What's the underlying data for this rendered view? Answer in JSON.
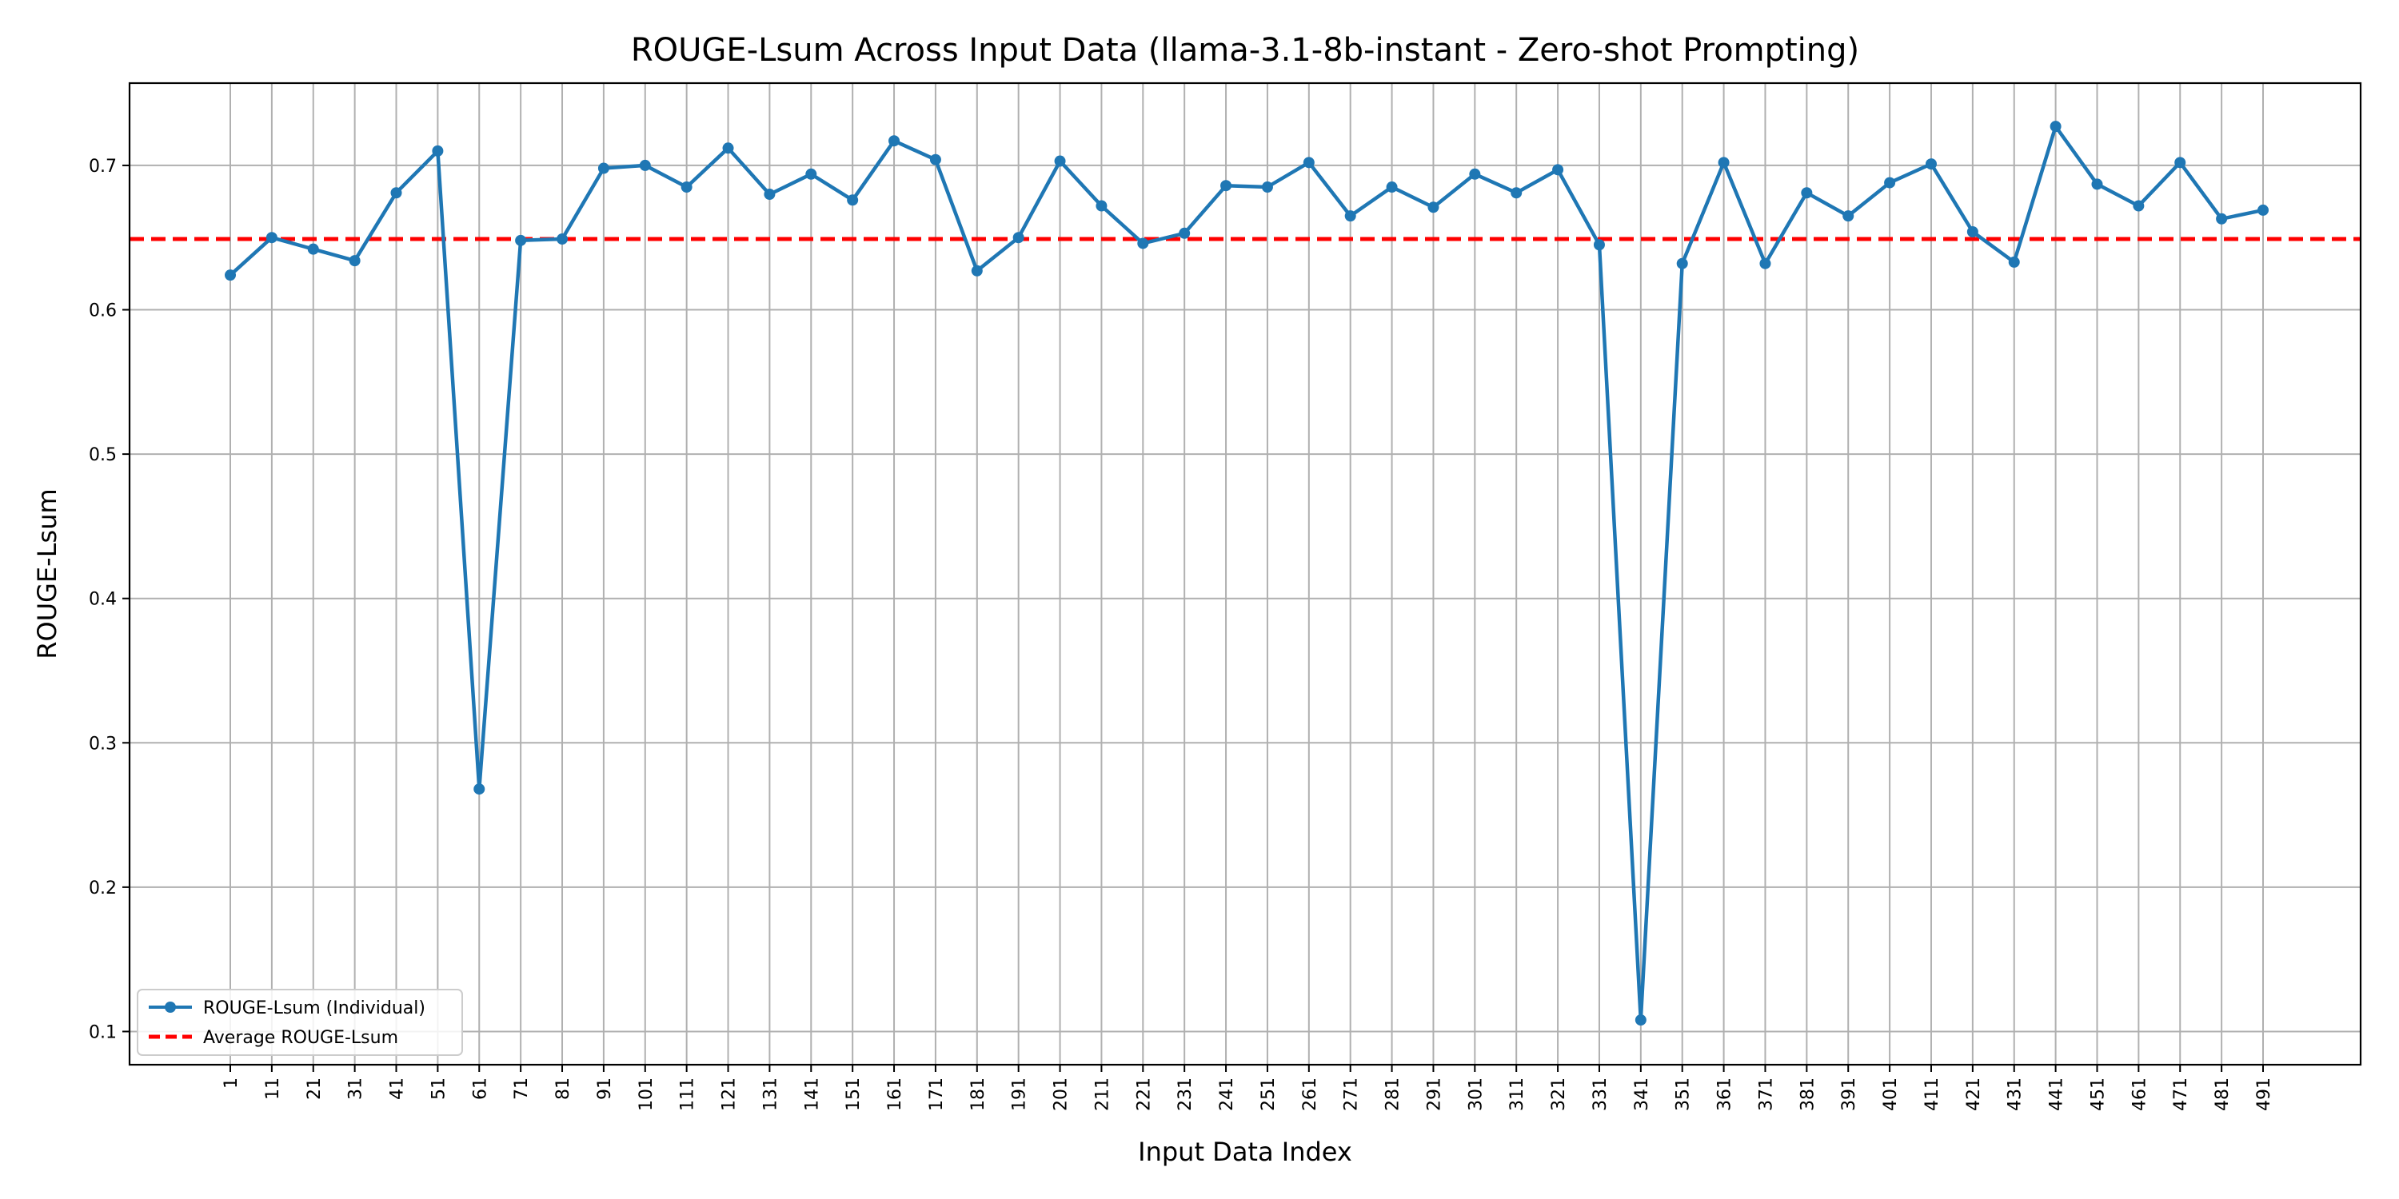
{
  "chart_data": {
    "type": "line",
    "title": "ROUGE-Lsum Across Input Data (llama-3.1-8b-instant - Zero-shot Prompting)",
    "xlabel": "Input Data Index",
    "ylabel": "ROUGE-Lsum",
    "ylim": [
      0.077,
      0.757
    ],
    "yticks": [
      0.1,
      0.2,
      0.3,
      0.4,
      0.5,
      0.6,
      0.7
    ],
    "x": [
      1,
      11,
      21,
      31,
      41,
      51,
      61,
      71,
      81,
      91,
      101,
      111,
      121,
      131,
      141,
      151,
      161,
      171,
      181,
      191,
      201,
      211,
      221,
      231,
      241,
      251,
      261,
      271,
      281,
      291,
      301,
      311,
      321,
      331,
      341,
      351,
      361,
      371,
      381,
      391,
      401,
      411,
      421,
      431,
      441,
      451,
      461,
      471,
      481,
      491
    ],
    "series": [
      {
        "name": "ROUGE-Lsum (Individual)",
        "color": "#1f77b4",
        "style": "solid-line-with-dots",
        "values": [
          0.624,
          0.65,
          0.642,
          0.634,
          0.681,
          0.71,
          0.268,
          0.648,
          0.649,
          0.698,
          0.7,
          0.685,
          0.712,
          0.68,
          0.694,
          0.676,
          0.717,
          0.704,
          0.627,
          0.65,
          0.703,
          0.672,
          0.646,
          0.653,
          0.686,
          0.685,
          0.702,
          0.665,
          0.685,
          0.671,
          0.694,
          0.681,
          0.697,
          0.645,
          0.108,
          0.632,
          0.702,
          0.632,
          0.681,
          0.665,
          0.688,
          0.701,
          0.654,
          0.633,
          0.727,
          0.687,
          0.672,
          0.702,
          0.663,
          0.669
        ]
      },
      {
        "name": "Average ROUGE-Lsum",
        "color": "#ff0000",
        "style": "dashed",
        "value": 0.649
      }
    ],
    "grid": true,
    "legend_position": "lower-left"
  }
}
